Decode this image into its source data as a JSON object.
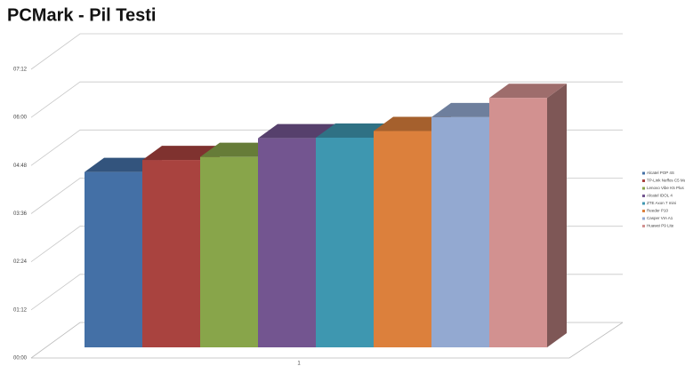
{
  "chart_data": {
    "type": "bar3d",
    "title": "PCMark - Pil Testi",
    "categories": [
      "1"
    ],
    "series": [
      {
        "name": "Alcatel POP 4S",
        "color": "#4470a6",
        "values": [
          291
        ]
      },
      {
        "name": "TP-Link Neffos C5 Max",
        "color": "#a9433f",
        "values": [
          311
        ]
      },
      {
        "name": "Lenovo Vibe K5 Plus",
        "color": "#88a54a",
        "values": [
          316
        ]
      },
      {
        "name": "Alcatel IDOL 4",
        "color": "#735590",
        "values": [
          347
        ]
      },
      {
        "name": "ZTE Axon 7 mini",
        "color": "#3e97b0",
        "values": [
          348
        ]
      },
      {
        "name": "Reeder P10",
        "color": "#dc803c",
        "values": [
          359
        ]
      },
      {
        "name": "Casper VIA A1",
        "color": "#93a9d1",
        "values": [
          382
        ]
      },
      {
        "name": "Huawei P9 Lite",
        "color": "#d29190",
        "values": [
          414
        ]
      }
    ],
    "ylim": [
      0,
      432
    ],
    "yticks": [
      {
        "value": 0,
        "label": "00:00"
      },
      {
        "value": 72,
        "label": "01:12"
      },
      {
        "value": 144,
        "label": "02:24"
      },
      {
        "value": 216,
        "label": "03:36"
      },
      {
        "value": 288,
        "label": "04:48"
      },
      {
        "value": 360,
        "label": "06:00"
      },
      {
        "value": 432,
        "label": "07:12"
      }
    ],
    "grid": true
  }
}
